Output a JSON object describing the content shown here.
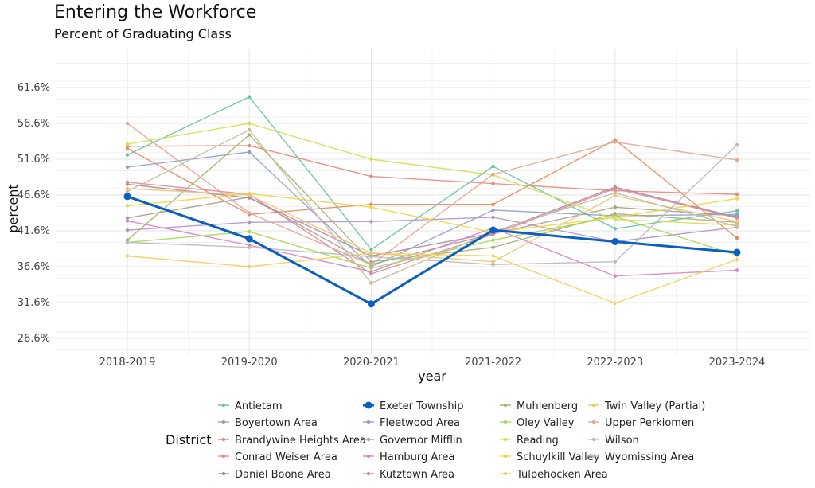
{
  "chart_data": {
    "type": "line",
    "title": "Entering the Workforce",
    "subtitle": "Percent of Graduating Class",
    "xlabel": "year",
    "ylabel": "percent",
    "x": [
      "2018-2019",
      "2019-2020",
      "2020-2021",
      "2021-2022",
      "2022-2023",
      "2023-2024"
    ],
    "yticks": [
      26.6,
      31.6,
      36.6,
      41.6,
      46.6,
      51.6,
      56.6,
      61.6
    ],
    "ytick_labels": [
      "26.6%",
      "31.6%",
      "36.6%",
      "41.6%",
      "46.6%",
      "51.6%",
      "56.6%",
      "61.6%"
    ],
    "ylim": [
      25.0,
      66.0
    ],
    "grid": true,
    "legend_title": "District",
    "legend_position": "bottom",
    "highlight": "Exeter Township",
    "series": [
      {
        "name": "Antietam",
        "color": "#66c2a5",
        "values": [
          52.2,
          60.3,
          39.0,
          50.6,
          41.9,
          44.4
        ]
      },
      {
        "name": "Boyertown Area",
        "color": "#a89f90",
        "values": [
          43.4,
          46.3,
          36.9,
          41.2,
          44.9,
          43.7
        ]
      },
      {
        "name": "Brandywine Heights Area",
        "color": "#e78a5e",
        "values": [
          53.1,
          43.9,
          45.3,
          45.3,
          54.3,
          40.6
        ]
      },
      {
        "name": "Conrad Weiser Area",
        "color": "#e98a7c",
        "values": [
          53.4,
          53.5,
          49.2,
          48.2,
          47.2,
          46.7
        ]
      },
      {
        "name": "Daniel Boone Area",
        "color": "#b0849e",
        "values": [
          48.1,
          46.2,
          38.1,
          41.3,
          47.7,
          43.5
        ]
      },
      {
        "name": "Exeter Township",
        "color": "#0a5fbf",
        "values": [
          46.4,
          40.5,
          31.4,
          41.7,
          40.1,
          38.6
        ]
      },
      {
        "name": "Fleetwood Area",
        "color": "#8da0cb",
        "values": [
          50.5,
          52.6,
          36.6,
          44.5,
          43.7,
          43.9
        ]
      },
      {
        "name": "Governor Mifflin",
        "color": "#b592c9",
        "values": [
          41.7,
          42.8,
          42.9,
          43.5,
          40.1,
          42.1
        ]
      },
      {
        "name": "Hamburg Area",
        "color": "#d683c8",
        "values": [
          43.0,
          39.6,
          35.9,
          42.0,
          35.3,
          36.1
        ]
      },
      {
        "name": "Kutztown Area",
        "color": "#d9889a",
        "values": [
          48.4,
          46.7,
          35.6,
          41.1,
          47.5,
          43.4
        ]
      },
      {
        "name": "Muhlenberg",
        "color": "#a5b06b",
        "values": [
          40.3,
          55.0,
          37.3,
          39.3,
          44.0,
          42.8
        ]
      },
      {
        "name": "Oley Valley",
        "color": "#a6d854",
        "values": [
          40.0,
          41.5,
          36.4,
          40.3,
          43.6,
          38.2
        ]
      },
      {
        "name": "Reading",
        "color": "#d2de4e",
        "values": [
          53.7,
          56.6,
          51.6,
          49.4,
          43.2,
          42.4
        ]
      },
      {
        "name": "Schuylkill Valley",
        "color": "#f2d63f",
        "values": [
          45.1,
          46.8,
          44.9,
          41.4,
          43.5,
          46.1
        ]
      },
      {
        "name": "Tulpehocken Area",
        "color": "#f5cf5a",
        "values": [
          38.1,
          36.6,
          38.5,
          38.1,
          31.5,
          37.6
        ]
      },
      {
        "name": "Twin Valley (Partial)",
        "color": "#ecc56e",
        "values": [
          47.5,
          46.6,
          38.5,
          37.3,
          46.5,
          42.9
        ]
      },
      {
        "name": "Upper Perkiomen",
        "color": "#e0a793",
        "values": [
          56.6,
          44.1,
          36.9,
          49.5,
          54.0,
          51.5
        ]
      },
      {
        "name": "Wilson",
        "color": "#c9b9a0",
        "values": [
          47.1,
          55.7,
          34.3,
          41.5,
          46.9,
          42.2
        ]
      },
      {
        "name": "Wyomissing Area",
        "color": "#b8b8b8",
        "values": [
          40.0,
          39.3,
          38.0,
          36.9,
          37.3,
          53.6
        ]
      }
    ]
  }
}
